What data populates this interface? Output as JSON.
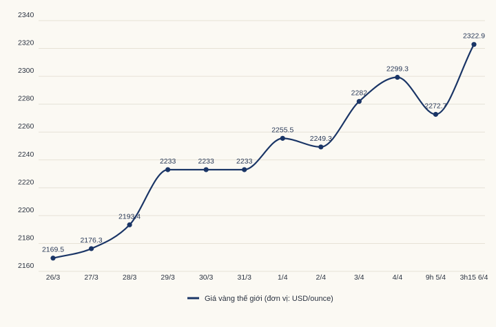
{
  "chart_data": {
    "type": "line",
    "categories": [
      "26/3",
      "27/3",
      "28/3",
      "29/3",
      "30/3",
      "31/3",
      "1/4",
      "2/4",
      "3/4",
      "4/4",
      "9h 5/4",
      "3h15 6/4"
    ],
    "series": [
      {
        "name": "Giá vàng thế giới (đơn vị: USD/ounce)",
        "values": [
          2169.5,
          2176.3,
          2193.4,
          2233,
          2233,
          2233,
          2255.5,
          2249.3,
          2282,
          2299.3,
          2272.7,
          2322.9
        ],
        "labels": [
          "2169.5",
          "2176.3",
          "2193.4",
          "2233",
          "2233",
          "2233",
          "2255.5",
          "2249.3",
          "2282",
          "2299.3",
          "2272.7",
          "2322.9"
        ],
        "color": "#1a3566"
      }
    ],
    "yticks": [
      2160,
      2180,
      2200,
      2220,
      2240,
      2260,
      2280,
      2300,
      2320,
      2340
    ],
    "ylim": [
      2160,
      2340
    ],
    "title": "",
    "xlabel": "",
    "ylabel": "",
    "grid": true,
    "legend_position": "bottom"
  },
  "colors": {
    "background": "#fbf9f3",
    "grid": "#e6e1d6",
    "series": "#1a3566"
  }
}
